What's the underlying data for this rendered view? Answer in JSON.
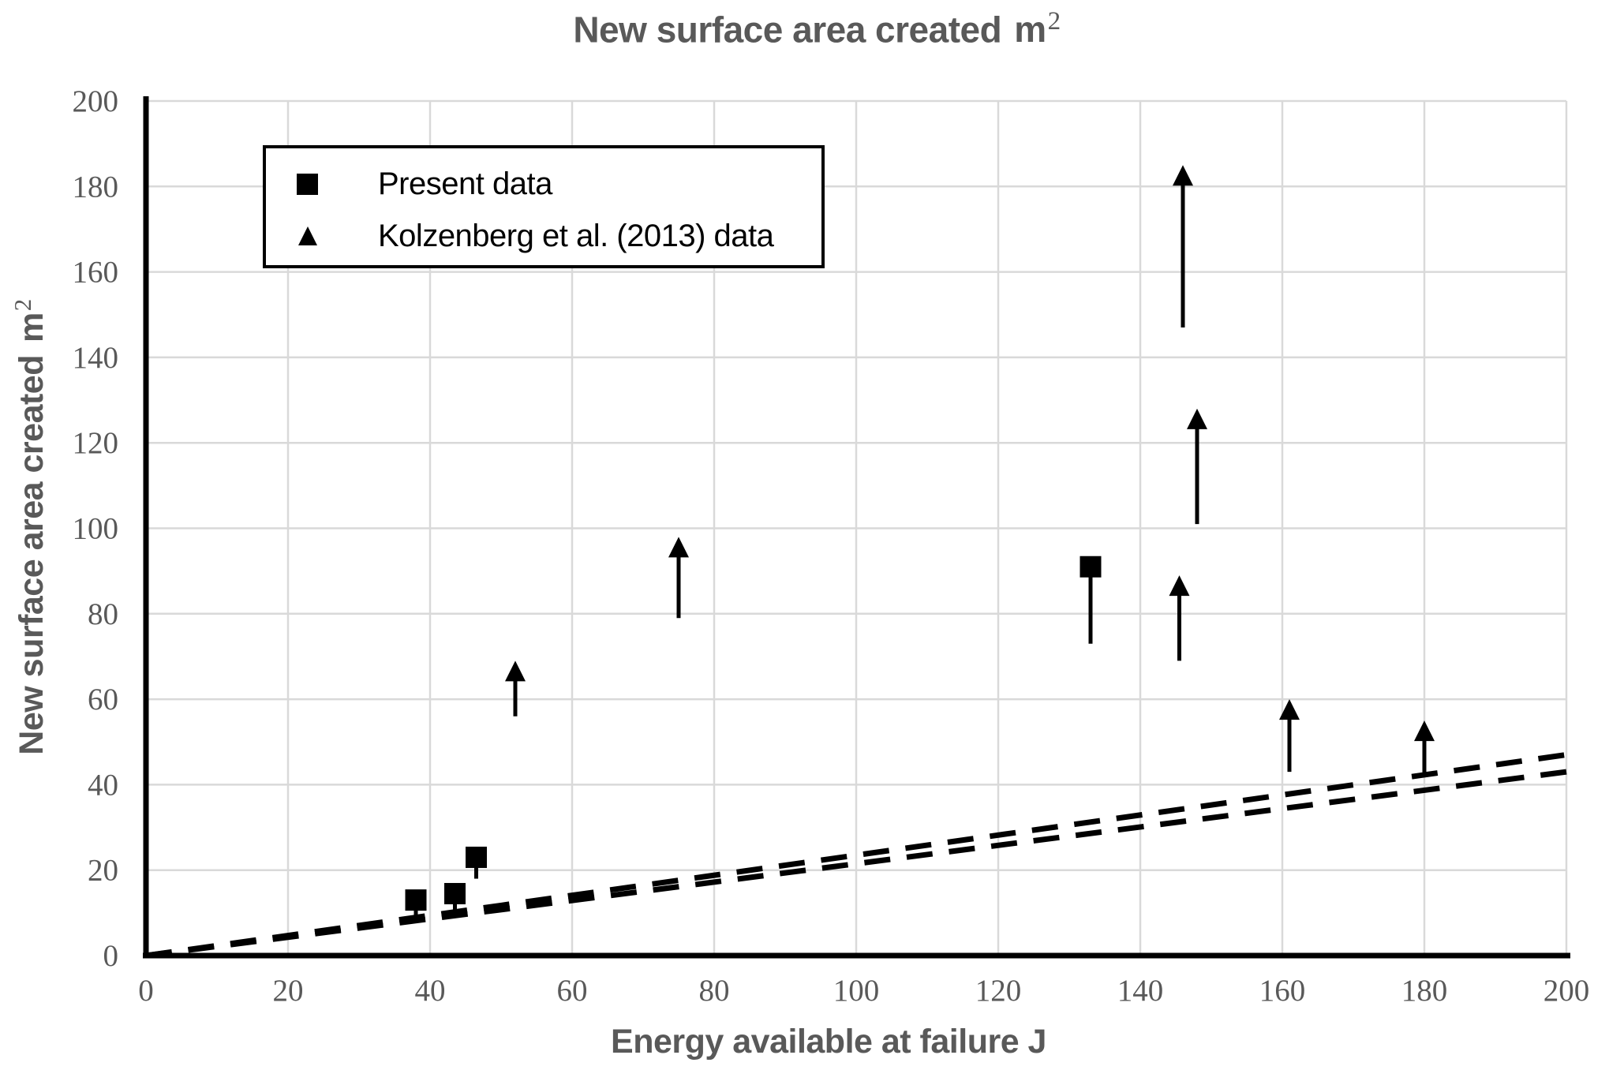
{
  "title": {
    "main": "New surface area created",
    "unit": "m",
    "sup": "2"
  },
  "x_axis": {
    "label": "Energy available at failure J"
  },
  "y_axis": {
    "main": "New surface area created",
    "unit": "m",
    "sup": "2"
  },
  "legend": {
    "items": [
      {
        "marker": "square",
        "label": "Present data"
      },
      {
        "marker": "up-arrow",
        "label": "Kolzenberg et al. (2013) data"
      }
    ]
  },
  "colors": {
    "background": "#ffffff",
    "grid": "#d9d9d9",
    "axis": "#000000",
    "marker": "#000000",
    "label_text": "#595959",
    "legend_text": "#000000"
  },
  "chart_data": {
    "type": "scatter",
    "title": "New surface area created m²",
    "xlabel": "Energy available at failure J",
    "ylabel": "New surface area created m²",
    "xlim": [
      0,
      200
    ],
    "ylim": [
      0,
      200
    ],
    "x_tick_step": 20,
    "y_tick_step": 20,
    "grid": true,
    "legend_position": "top-left-inside",
    "series": [
      {
        "name": "Present data",
        "marker": "square",
        "points": [
          {
            "x": 38,
            "y": 13,
            "y_low": 9
          },
          {
            "x": 43.5,
            "y": 14.5,
            "y_low": 10
          },
          {
            "x": 46.5,
            "y": 23,
            "y_low": 18
          },
          {
            "x": 133,
            "y": 91,
            "y_low": 73
          }
        ]
      },
      {
        "name": "Kolzenberg et al. (2013) data",
        "marker": "up-arrow",
        "points": [
          {
            "x": 52,
            "y_from": 56,
            "y_to": 69
          },
          {
            "x": 75,
            "y_from": 79,
            "y_to": 98
          },
          {
            "x": 145.5,
            "y_from": 69,
            "y_to": 89
          },
          {
            "x": 146,
            "y_from": 147,
            "y_to": 185
          },
          {
            "x": 148,
            "y_from": 101,
            "y_to": 128
          },
          {
            "x": 161,
            "y_from": 43,
            "y_to": 60
          },
          {
            "x": 180,
            "y_from": 42,
            "y_to": 55
          }
        ]
      }
    ],
    "reference_lines": [
      {
        "style": "dashed",
        "from": [
          0,
          0
        ],
        "to": [
          200,
          47
        ]
      },
      {
        "style": "dashed",
        "from": [
          0,
          0
        ],
        "to": [
          200,
          43
        ]
      }
    ]
  }
}
